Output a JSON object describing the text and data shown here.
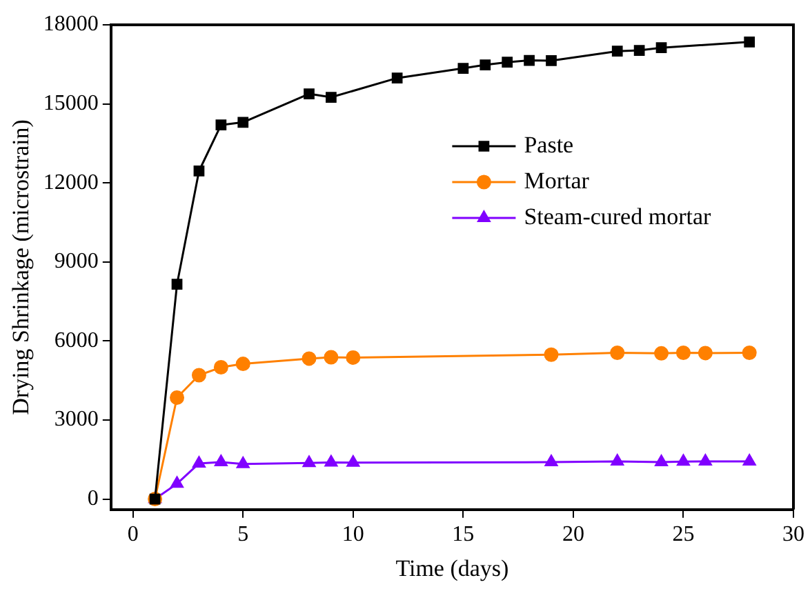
{
  "chart_data": {
    "type": "line",
    "xlabel": "Time (days)",
    "ylabel": "Drying Shrinkage (microstrain)",
    "xlim": [
      -1,
      30
    ],
    "xticks": [
      0,
      5,
      10,
      15,
      20,
      25,
      30
    ],
    "ylim": [
      -400,
      18000
    ],
    "yticks": [
      0,
      3000,
      6000,
      9000,
      12000,
      15000,
      18000
    ],
    "grid": false,
    "legend": "top right",
    "line_style": "solid",
    "series": [
      {
        "name": "Paste",
        "color": "#000000",
        "marker": "square",
        "x": [
          1,
          2,
          3,
          4,
          5,
          8,
          9,
          12,
          15,
          16,
          17,
          18,
          19,
          22,
          23,
          24,
          28
        ],
        "values": [
          0,
          8150,
          12450,
          14200,
          14300,
          15380,
          15250,
          15980,
          16350,
          16480,
          16580,
          16650,
          16640,
          17000,
          17030,
          17130,
          17350
        ]
      },
      {
        "name": "Mortar",
        "color": "#ff8000",
        "marker": "circle",
        "x": [
          1,
          2,
          3,
          4,
          5,
          8,
          9,
          10,
          19,
          22,
          24,
          25,
          26,
          28
        ],
        "values": [
          0,
          3850,
          4700,
          5000,
          5130,
          5330,
          5380,
          5370,
          5480,
          5550,
          5530,
          5550,
          5540,
          5550
        ]
      },
      {
        "name": "Steam-cured mortar",
        "color": "#8000ff",
        "marker": "triangle",
        "x": [
          1,
          2,
          3,
          4,
          5,
          8,
          9,
          10,
          19,
          22,
          24,
          25,
          26,
          28
        ],
        "values": [
          0,
          580,
          1350,
          1400,
          1330,
          1370,
          1390,
          1380,
          1400,
          1430,
          1400,
          1420,
          1430,
          1430
        ]
      }
    ]
  }
}
